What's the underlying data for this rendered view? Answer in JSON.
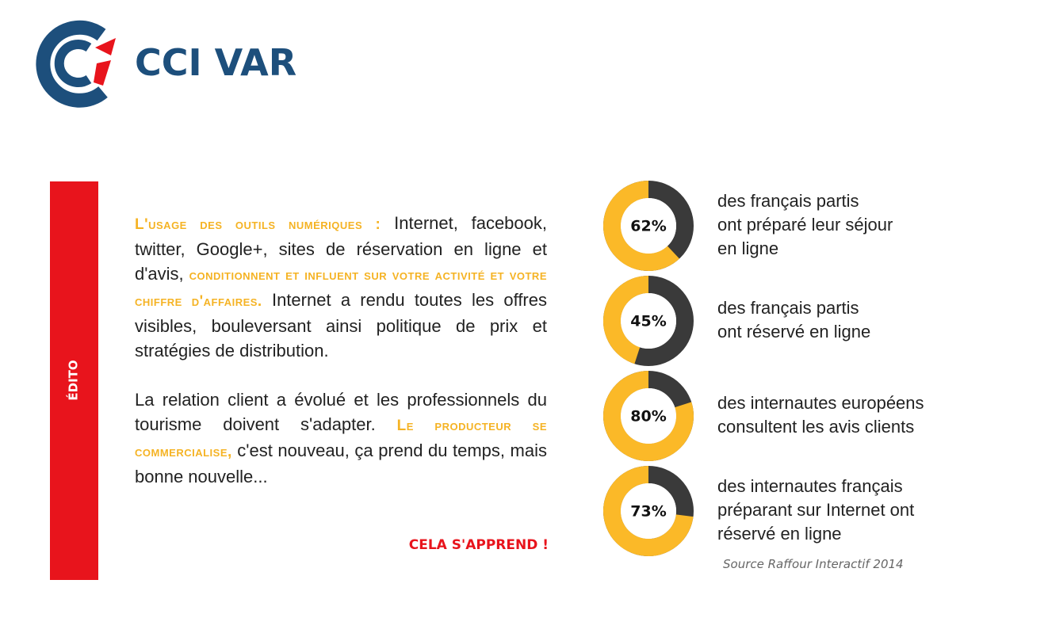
{
  "logo": {
    "text": "CCI VAR"
  },
  "sidebar": {
    "label": "ÉDITO"
  },
  "edito": {
    "paragraphs": [
      [
        {
          "text": "L'usage des outils numériques :",
          "style": "highlight"
        },
        {
          "text": " Internet, facebook, twitter, Google+, sites de réservation en ligne et d'avis, ",
          "style": "normal"
        },
        {
          "text": "conditionnent et influent sur votre activité et votre chiffre d'affaires.",
          "style": "highlight"
        },
        {
          "text": " Internet a rendu toutes les offres visibles, bouleversant ainsi politique de prix et stratégies de distribution.",
          "style": "normal"
        }
      ],
      [
        {
          "text": "La relation client a évolué et les professionnels du tourisme doivent s'adapter. ",
          "style": "normal"
        },
        {
          "text": "Le producteur se commercialise,",
          "style": "highlight"
        },
        {
          "text": " c'est nouveau, ça prend du temps, mais bonne nouvelle...",
          "style": "normal"
        }
      ]
    ],
    "signoff": "CELA S'APPREND !"
  },
  "stats": [
    {
      "value": 62,
      "value_label": "62%",
      "lines": [
        "des français partis",
        "ont préparé leur séjour",
        "en ligne"
      ]
    },
    {
      "value": 45,
      "value_label": "45%",
      "lines": [
        "des français partis",
        "ont réservé en ligne"
      ]
    },
    {
      "value": 80,
      "value_label": "80%",
      "lines": [
        "des internautes européens",
        "consultent les avis clients"
      ]
    },
    {
      "value": 73,
      "value_label": "73%",
      "lines": [
        "des internautes français",
        "préparant sur Internet ont",
        "réservé en ligne"
      ]
    }
  ],
  "source": "Source Raffour Interactif 2014"
}
